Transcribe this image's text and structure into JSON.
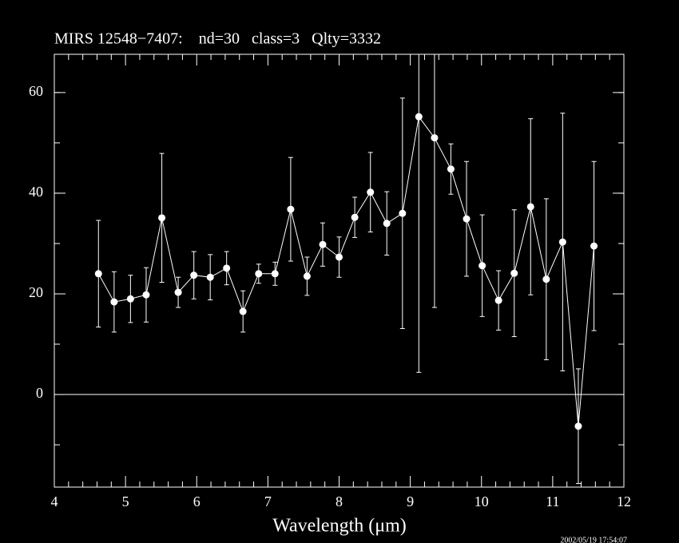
{
  "chart_data": {
    "type": "scatter",
    "title": "MIRS 12548−7407:    nd=30   class=3   Qlty=3332",
    "x_label": "Wavelength (μm)",
    "timestamp": "2002/05/19 17:54:07",
    "color": "#ffffff",
    "x": [
      4.62,
      4.84,
      5.07,
      5.29,
      5.51,
      5.74,
      5.96,
      6.19,
      6.42,
      6.65,
      6.87,
      7.1,
      7.32,
      7.55,
      7.77,
      8.0,
      8.22,
      8.44,
      8.67,
      8.89,
      9.12,
      9.34,
      9.57,
      9.79,
      10.01,
      10.24,
      10.46,
      10.69,
      10.91,
      11.14,
      11.36,
      11.58
    ],
    "values": [
      24.0,
      18.4,
      19.0,
      19.8,
      35.1,
      20.3,
      23.7,
      23.3,
      25.1,
      16.5,
      24.0,
      24.0,
      36.8,
      23.5,
      29.8,
      27.3,
      35.2,
      40.2,
      34.0,
      36.0,
      55.2,
      51.0,
      44.8,
      34.9,
      25.6,
      18.7,
      24.1,
      37.3,
      22.9,
      30.3,
      -6.3,
      29.5
    ],
    "errors": [
      10.6,
      6.0,
      4.7,
      5.4,
      12.8,
      3.0,
      4.7,
      4.5,
      3.3,
      4.1,
      1.9,
      2.3,
      10.3,
      3.8,
      4.3,
      4.0,
      4.0,
      7.9,
      6.3,
      22.9,
      50.8,
      33.7,
      5.0,
      11.4,
      10.1,
      5.9,
      12.6,
      17.5,
      16.0,
      25.6,
      11.4,
      16.8
    ],
    "xlim": [
      4,
      12
    ],
    "xticks": [
      4,
      5,
      6,
      7,
      8,
      9,
      10,
      11,
      12
    ],
    "ylim": [
      -18.4,
      67.6
    ],
    "yticks": [
      0,
      20,
      40,
      60
    ],
    "zero_line": true
  }
}
